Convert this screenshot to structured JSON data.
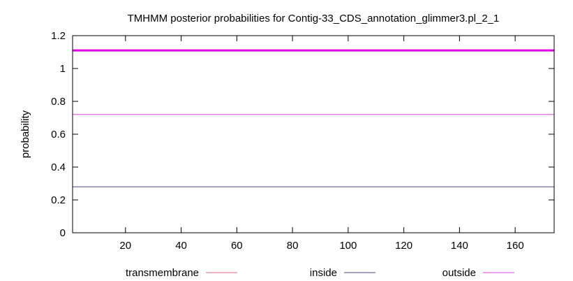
{
  "chart_data": {
    "type": "line",
    "title": "TMHMM posterior probabilities for Contig-33_CDS_annotation_glimmer3.pl_2_1",
    "xlabel": "",
    "ylabel": "probability",
    "xlim": [
      1,
      174
    ],
    "ylim": [
      0,
      1.2
    ],
    "x_ticks": [
      20,
      40,
      60,
      80,
      100,
      120,
      140,
      160
    ],
    "y_ticks": [
      0,
      0.2,
      0.4,
      0.6,
      0.8,
      1,
      1.2
    ],
    "y_tick_labels": [
      "0",
      "0.2",
      "0.4",
      "0.6",
      "0.8",
      "1",
      "1.2"
    ],
    "grid": false,
    "legend_position": "bottom",
    "series": [
      {
        "name": "transmembrane",
        "color": "#e0607e",
        "x": [
          1,
          174
        ],
        "y": [
          0,
          0
        ]
      },
      {
        "name": "inside",
        "color": "#4b4b80",
        "x": [
          1,
          174
        ],
        "y": [
          0.28,
          0.28
        ]
      },
      {
        "name": "outside",
        "color": "#e040e0",
        "x": [
          1,
          174
        ],
        "y": [
          0.72,
          0.72
        ]
      }
    ],
    "overlay_line": {
      "color": "#e000e0",
      "y": 1.11
    }
  }
}
